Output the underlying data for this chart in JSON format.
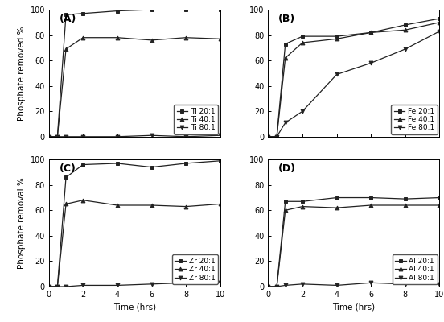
{
  "time_points": [
    0,
    0.5,
    1,
    2,
    4,
    6,
    8,
    10
  ],
  "A": {
    "label": "(A)",
    "ylabel": "Phosphate removed %",
    "series": {
      "Ti 20:1": [
        0,
        0,
        96,
        97,
        99,
        100,
        100,
        100
      ],
      "Ti 40:1": [
        0,
        0,
        69,
        78,
        78,
        76,
        78,
        77
      ],
      "Ti 80:1": [
        0,
        0,
        0,
        0,
        0,
        1,
        0,
        1
      ]
    }
  },
  "B": {
    "label": "(B)",
    "ylabel": "Phosphate removed %",
    "series": {
      "Fe 20:1": [
        0,
        0,
        73,
        79,
        79,
        82,
        88,
        93
      ],
      "Fe 40:1": [
        0,
        0,
        62,
        74,
        77,
        82,
        84,
        90
      ],
      "Fe 80:1": [
        0,
        0,
        11,
        20,
        49,
        58,
        69,
        83
      ]
    }
  },
  "C": {
    "label": "(C)",
    "ylabel": "Phosphate removal %",
    "series": {
      "Zr 20:1": [
        0,
        0,
        86,
        96,
        97,
        94,
        97,
        99
      ],
      "Zr 40:1": [
        0,
        0,
        65,
        68,
        64,
        64,
        63,
        65
      ],
      "Zr 80:1": [
        0,
        0,
        0,
        1,
        1,
        2,
        3,
        3
      ]
    }
  },
  "D": {
    "label": "(D)",
    "ylabel": "Phosphate removal %",
    "series": {
      "Al 20:1": [
        0,
        0,
        67,
        67,
        70,
        70,
        69,
        70
      ],
      "Al 40:1": [
        0,
        0,
        60,
        63,
        62,
        64,
        64,
        64
      ],
      "Al 80:1": [
        0,
        0,
        1,
        2,
        1,
        3,
        2,
        2
      ]
    }
  },
  "xlim": [
    0,
    10
  ],
  "ylim": [
    0,
    100
  ],
  "xticks": [
    0,
    2,
    4,
    6,
    8,
    10
  ],
  "yticks": [
    0,
    20,
    40,
    60,
    80,
    100
  ],
  "xlabel": "Time (hrs)",
  "markers": [
    "s",
    "^",
    "v"
  ],
  "line_color": "#222222",
  "fontsize_label": 7.5,
  "fontsize_tick": 7,
  "fontsize_legend": 6.5,
  "fontsize_panel": 9
}
